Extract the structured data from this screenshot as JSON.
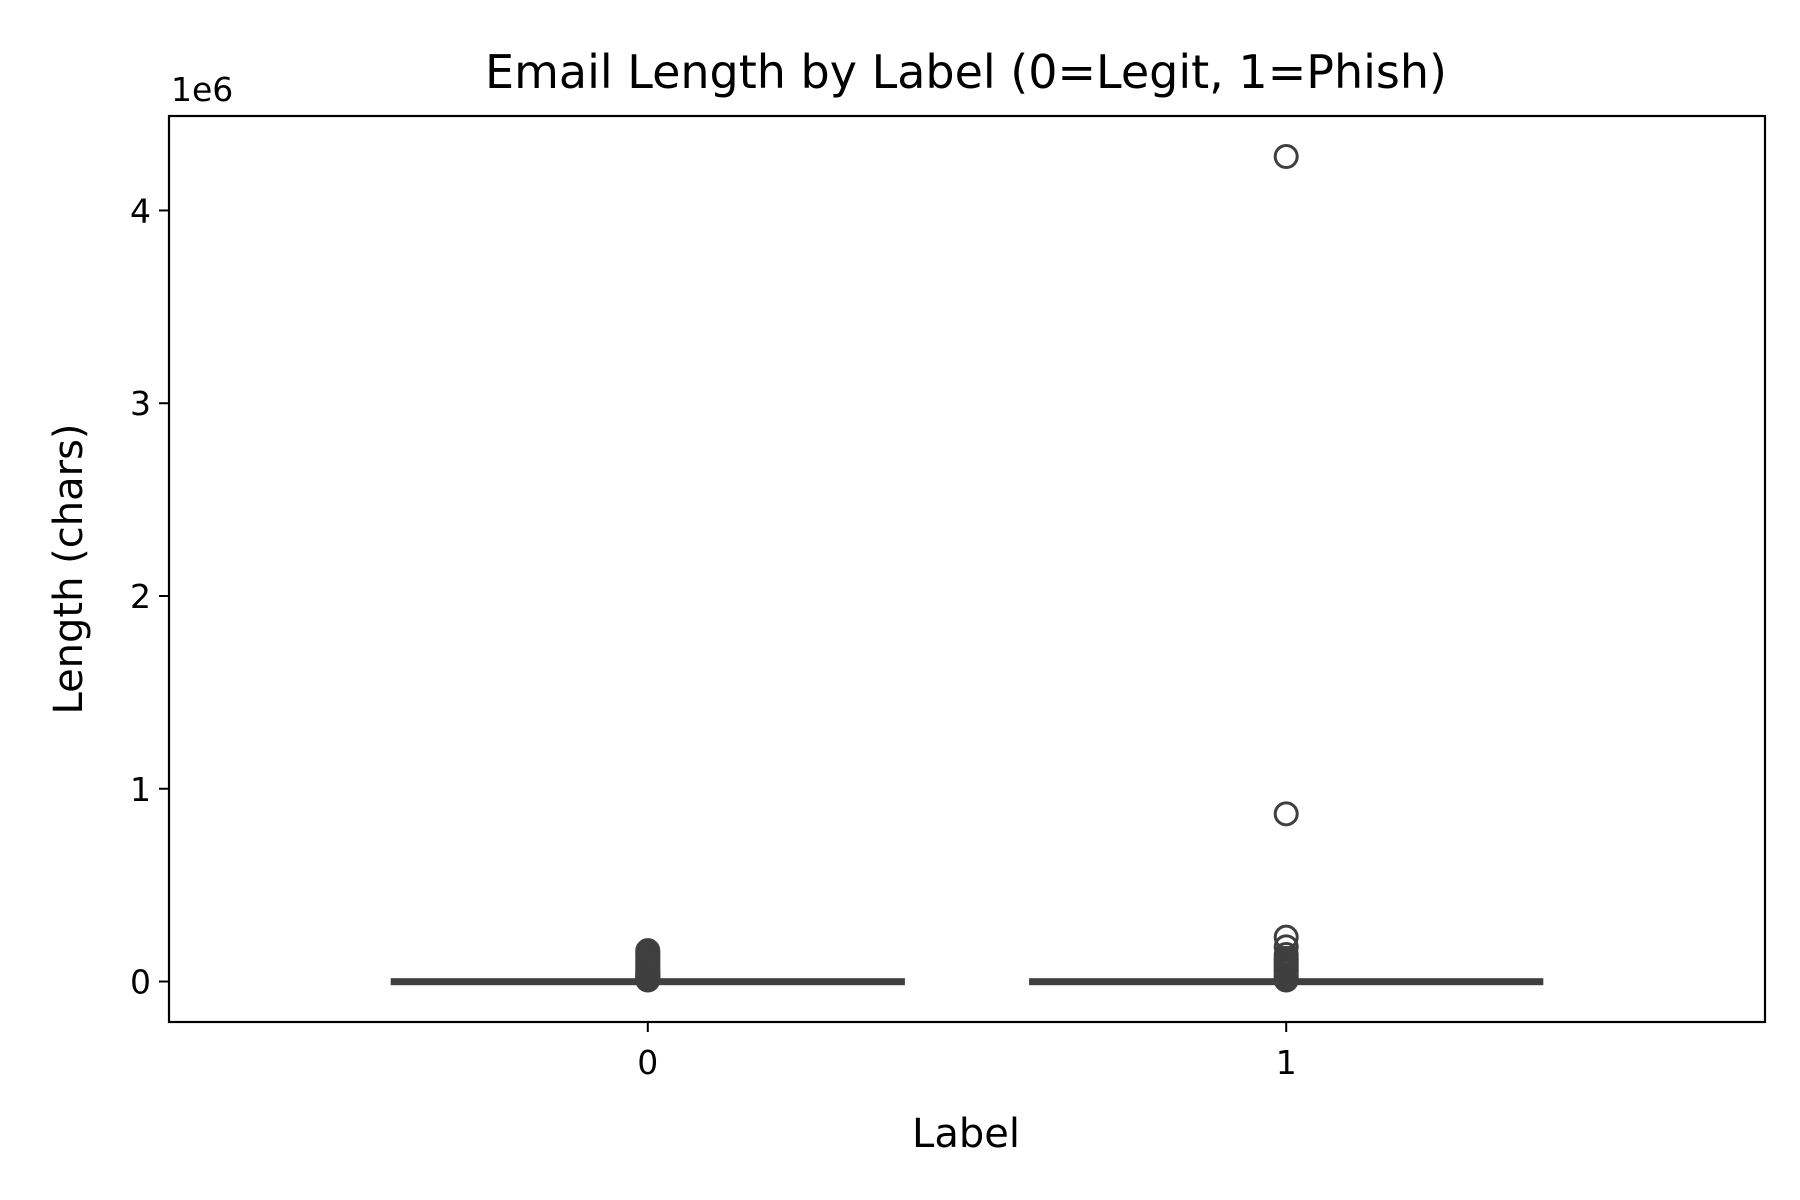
{
  "chart_data": {
    "type": "box",
    "title": "Email Length by Label (0=Legit, 1=Phish)",
    "xlabel": "Label",
    "ylabel": "Length (chars)",
    "y_offset_text": "1e6",
    "y_scale_factor": 1000000,
    "categories": [
      "0",
      "1"
    ],
    "yticks": [
      0,
      1,
      2,
      3,
      4
    ],
    "ylim": [
      -0.21,
      4.49
    ],
    "grid": false,
    "legend": null,
    "colors": {
      "box_line": "#3f3f3f",
      "axis": "#000000",
      "background": "#ffffff"
    },
    "boxes": [
      {
        "category": "0",
        "q1": 0.0005,
        "median": 0.0012,
        "q3": 0.003,
        "whisker_low": 0.0,
        "whisker_high": 0.007,
        "outliers": [
          0.008,
          0.012,
          0.016,
          0.02,
          0.025,
          0.03,
          0.035,
          0.04,
          0.045,
          0.05,
          0.06,
          0.07,
          0.08,
          0.09,
          0.1,
          0.11,
          0.12,
          0.13,
          0.14,
          0.15,
          0.16
        ]
      },
      {
        "category": "1",
        "q1": 0.0005,
        "median": 0.0012,
        "q3": 0.003,
        "whisker_low": 0.0,
        "whisker_high": 0.007,
        "outliers": [
          0.008,
          0.015,
          0.025,
          0.035,
          0.05,
          0.06,
          0.07,
          0.08,
          0.09,
          0.1,
          0.11,
          0.12,
          0.14,
          0.18,
          0.23,
          0.87,
          4.28
        ]
      }
    ]
  }
}
